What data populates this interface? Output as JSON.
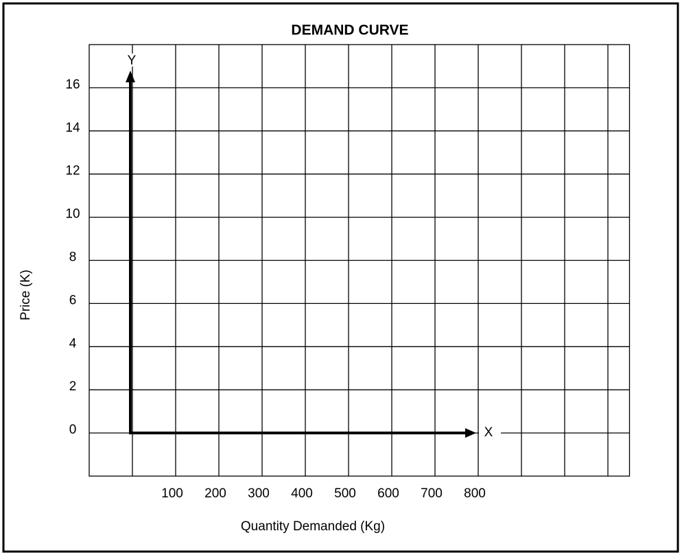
{
  "chart_data": {
    "type": "line",
    "title": "DEMAND CURVE",
    "x_label": "Quantity Demanded (Kg)",
    "y_label": "Price (K)",
    "x_axis_letter": "X",
    "y_axis_letter": "Y",
    "xlim": [
      -100,
      1150
    ],
    "ylim": [
      -2,
      18
    ],
    "xticks": [
      100,
      200,
      300,
      400,
      500,
      600,
      700,
      800
    ],
    "yticks": [
      0,
      2,
      4,
      6,
      8,
      10,
      12,
      14,
      16
    ],
    "x_grid": [
      0,
      100,
      200,
      300,
      400,
      500,
      600,
      700,
      800,
      900,
      1000,
      1100
    ],
    "grid": true
  }
}
